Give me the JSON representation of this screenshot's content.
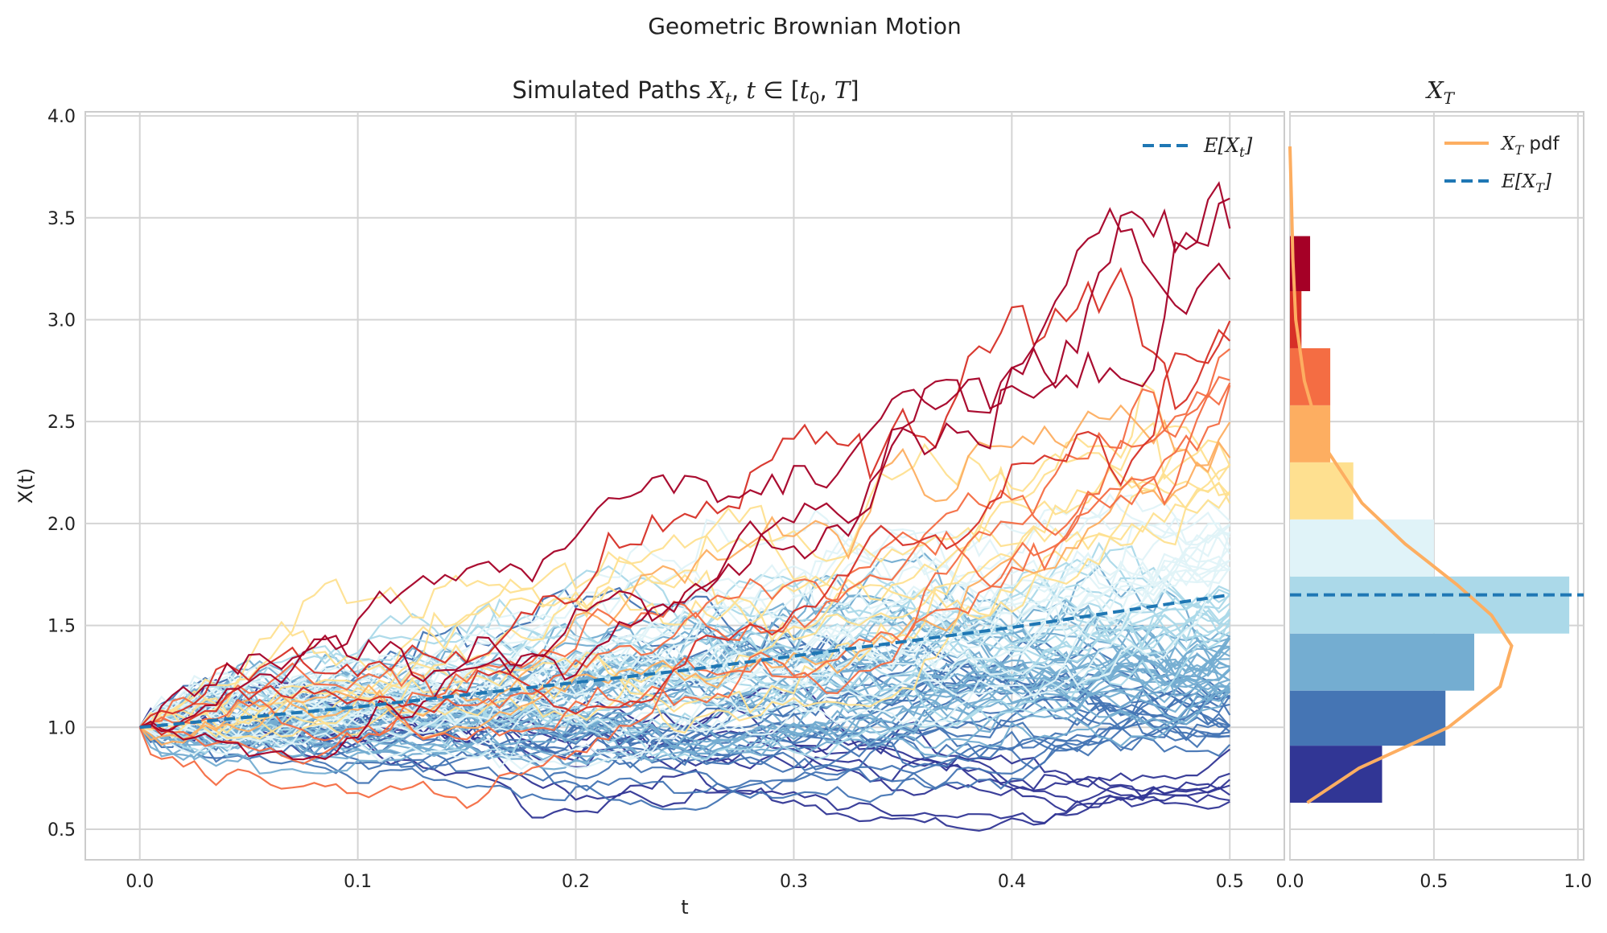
{
  "figure": {
    "suptitle": "Geometric Brownian Motion"
  },
  "chart_data": [
    {
      "type": "line",
      "title": "Simulated Paths X_t, t ∈ [t_0, T]",
      "title_parts": {
        "prefix": "Simulated Paths ",
        "x": "X",
        "x_sub": "t",
        "comma": ", ",
        "t": "t",
        "in": " ∈ [",
        "t0": "t",
        "t0_sub": "0",
        "sep": ", ",
        "T": "T",
        "close": "]"
      },
      "xlabel": "t",
      "ylabel": "X(t)",
      "xlim": [
        -0.025,
        0.525
      ],
      "ylim": [
        0.35,
        4.02
      ],
      "xticks": [
        "0.0",
        "0.1",
        "0.2",
        "0.3",
        "0.4",
        "0.5"
      ],
      "yticks": [
        "0.5",
        "1.0",
        "1.5",
        "2.0",
        "2.5",
        "3.0",
        "3.5",
        "4.0"
      ],
      "grid": true,
      "legend": {
        "placement": "top-right",
        "label_base": "E[X",
        "label_sub": "t",
        "label_close": "]"
      },
      "paths": {
        "count": 100,
        "start_value": 1.0,
        "t_start": 0.0,
        "t_end": 0.5,
        "colormap": "RdYlBu_r",
        "note_colors_by": "terminal value"
      },
      "expected_value": {
        "name": "E[X_t]",
        "color": "#1f77b4",
        "style": "dashed",
        "x": [
          0.0,
          0.05,
          0.1,
          0.15,
          0.2,
          0.25,
          0.3,
          0.35,
          0.4,
          0.45,
          0.5
        ],
        "y": [
          1.0,
          1.05,
          1.1,
          1.16,
          1.22,
          1.28,
          1.35,
          1.42,
          1.49,
          1.57,
          1.65
        ]
      }
    },
    {
      "type": "bar",
      "orientation": "horizontal",
      "title": "X_T",
      "title_parts": {
        "x": "X",
        "x_sub": "T"
      },
      "xlim": [
        0.0,
        1.02
      ],
      "ylim": [
        0.35,
        4.02
      ],
      "xticks": [
        "0.0",
        "0.5",
        "1.0"
      ],
      "grid": true,
      "legend": {
        "placement": "top-right",
        "pdf_label_x": "X",
        "pdf_label_sub": "T",
        "pdf_label_rest": " pdf",
        "mean_label_base": "E[X",
        "mean_label_sub": "T",
        "mean_label_close": "]"
      },
      "histogram": {
        "bin_edges": [
          0.63,
          0.91,
          1.18,
          1.46,
          1.74,
          2.02,
          2.3,
          2.58,
          2.86,
          3.14,
          3.41
        ],
        "density": [
          0.32,
          0.54,
          0.64,
          0.97,
          0.5,
          0.22,
          0.14,
          0.14,
          0.04,
          0.07
        ],
        "colors": [
          "#313695",
          "#4575b4",
          "#74add1",
          "#abd9e9",
          "#e0f3f8",
          "#fee090",
          "#fdae61",
          "#f46d43",
          "#d73027",
          "#a50026"
        ]
      },
      "pdf": {
        "name": "X_T pdf",
        "color": "#fdae61",
        "y": [
          0.63,
          0.8,
          1.0,
          1.2,
          1.4,
          1.55,
          1.7,
          1.9,
          2.1,
          2.4,
          2.7,
          3.0,
          3.3,
          3.6,
          3.85
        ],
        "x": [
          0.06,
          0.24,
          0.55,
          0.73,
          0.77,
          0.7,
          0.58,
          0.4,
          0.25,
          0.11,
          0.05,
          0.02,
          0.01,
          0.005,
          0.0
        ]
      },
      "expected_value": {
        "name": "E[X_T]",
        "value": 1.65,
        "color": "#1f77b4"
      }
    }
  ]
}
